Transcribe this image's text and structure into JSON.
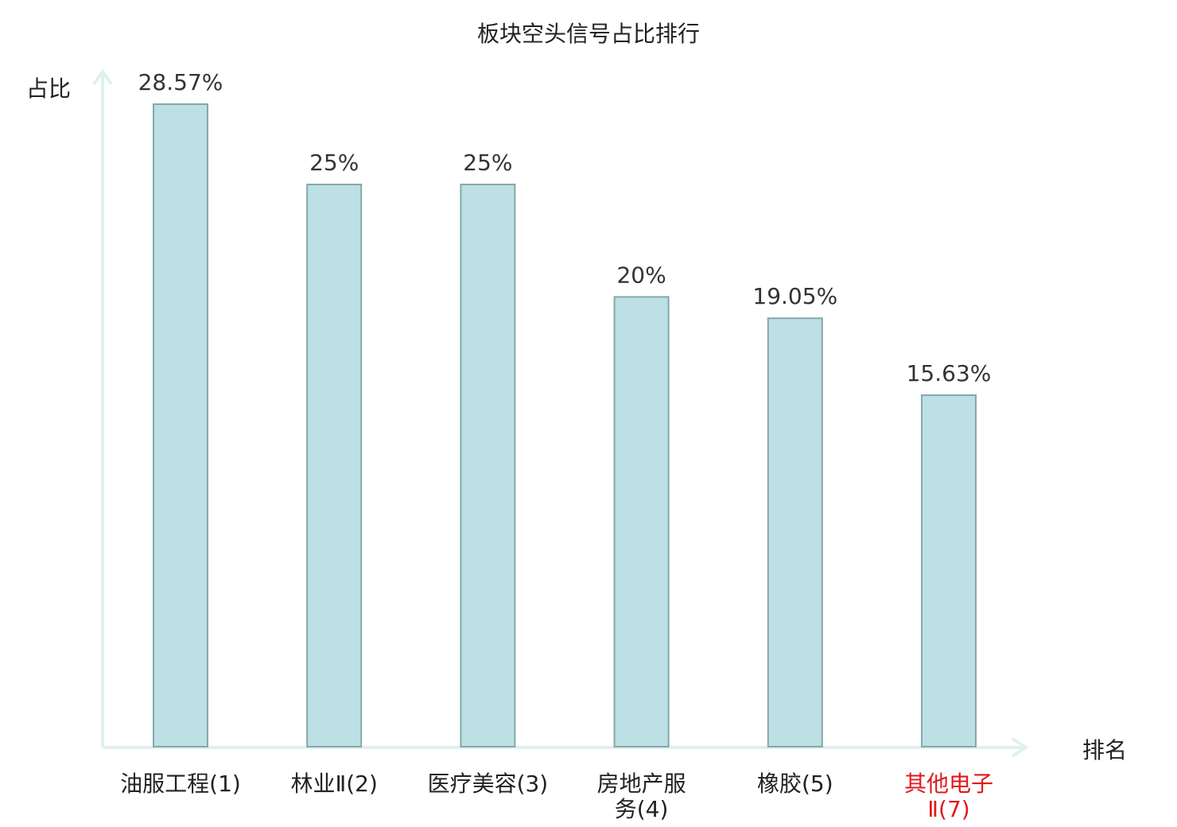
{
  "chart_data": {
    "type": "bar",
    "title": "板块空头信号占比排行",
    "xlabel": "排名",
    "ylabel": "占比",
    "categories": [
      {
        "name": "油服工程",
        "rank": "(1)",
        "lines": [
          "油服工程(1)"
        ]
      },
      {
        "name": "林业Ⅱ",
        "rank": "(2)",
        "lines": [
          "林业Ⅱ(2)"
        ]
      },
      {
        "name": "医疗美容",
        "rank": "(3)",
        "lines": [
          "医疗美容(3)"
        ]
      },
      {
        "name": "房地产服务",
        "rank": "(4)",
        "lines": [
          "房地产服",
          "务(4)"
        ]
      },
      {
        "name": "橡胶",
        "rank": "(5)",
        "lines": [
          "橡胶(5)"
        ]
      },
      {
        "name": "其他电子Ⅱ",
        "rank": "(7)",
        "lines": [
          "其他电子",
          "Ⅱ(7)"
        ]
      }
    ],
    "values": [
      28.57,
      25,
      25,
      20,
      19.05,
      15.63
    ],
    "value_labels": [
      "28.57%",
      "25%",
      "25%",
      "20%",
      "19.05%",
      "15.63%"
    ],
    "highlight_index": 5,
    "ylim": [
      0,
      28.57
    ],
    "grid": false,
    "colors": {
      "bar_fill": "#bce0e3",
      "bar_stroke": "#86a7aa",
      "axis": "#dff1ef",
      "highlight_text": "#e0191c"
    }
  }
}
